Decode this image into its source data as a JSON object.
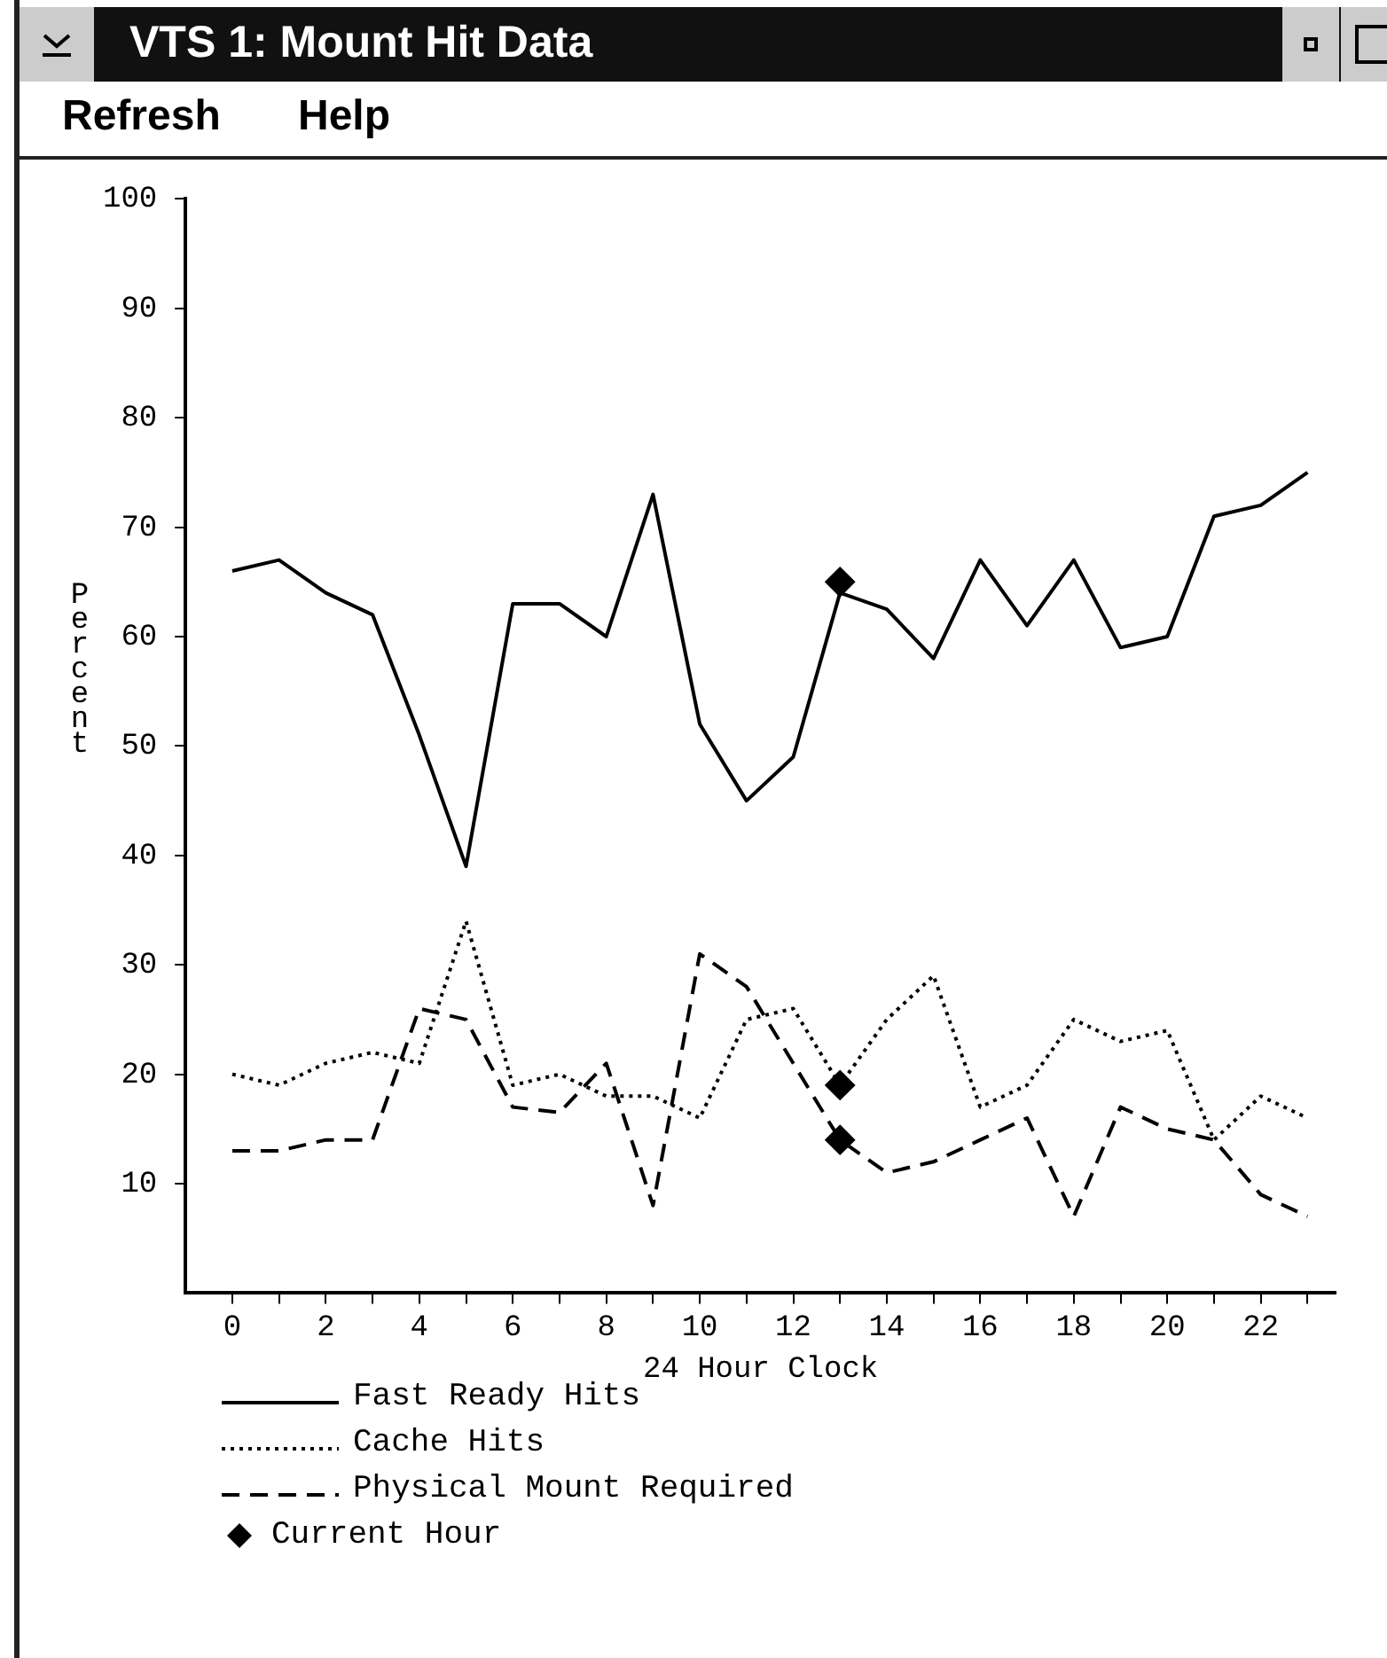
{
  "chart_data": {
    "type": "line",
    "title": "VTS 1: Mount Hit Data",
    "xlabel": "24 Hour Clock",
    "ylabel": "Percent",
    "annotations": [
      "Refresh",
      "Help"
    ],
    "x": [
      0,
      1,
      2,
      3,
      4,
      5,
      6,
      7,
      8,
      9,
      10,
      11,
      12,
      13,
      14,
      15,
      16,
      17,
      18,
      19,
      20,
      21,
      22,
      23
    ],
    "xlim": [
      -1,
      23.6
    ],
    "xticks": [
      0,
      {
        "value": 1,
        "label": null
      },
      2,
      {
        "value": 3,
        "label": null
      },
      4,
      {
        "value": 5,
        "label": null
      },
      6,
      {
        "value": 7,
        "label": null
      },
      8,
      {
        "value": 9,
        "label": null
      },
      10,
      {
        "value": 11,
        "label": null
      },
      12,
      {
        "value": 13,
        "label": null
      },
      14,
      {
        "value": 15,
        "label": null
      },
      16,
      {
        "value": 17,
        "label": null
      },
      18,
      {
        "value": 19,
        "label": null
      },
      20,
      {
        "value": 21,
        "label": null
      },
      22,
      {
        "value": 23,
        "label": null
      }
    ],
    "ylim": [
      0,
      100
    ],
    "yticks": [
      10,
      20,
      30,
      40,
      50,
      60,
      70,
      80,
      90,
      100
    ],
    "grid": false,
    "legend": "bottom left",
    "series": [
      {
        "name": "Fast Ready Hits",
        "color": "#000000",
        "line_style": "solid",
        "marker": "none",
        "values": [
          66,
          67,
          64,
          62,
          51,
          39,
          63,
          63,
          60,
          73,
          52,
          45,
          49,
          64,
          62.5,
          58,
          67,
          61,
          67,
          59,
          60,
          71,
          72,
          75
        ]
      },
      {
        "name": "Cache Hits",
        "color": "#000000",
        "line_style": "dotted",
        "marker": "none",
        "values": [
          20,
          19,
          21,
          22,
          21,
          34,
          19,
          20,
          18,
          18,
          16,
          25,
          26,
          19,
          25,
          29,
          17,
          19,
          25,
          23,
          24,
          14,
          18,
          16
        ]
      },
      {
        "name": "Physical Mount Required",
        "color": "#000000",
        "line_style": "dashed",
        "marker": "none",
        "values": [
          13,
          13,
          14,
          14,
          26,
          25,
          17,
          16.5,
          21,
          8,
          31,
          28,
          21,
          14,
          11,
          12,
          14,
          16,
          7,
          17,
          15,
          14,
          9,
          7
        ]
      },
      {
        "name": "Current Hour",
        "type": "scatter",
        "color": "#000000",
        "marker": "diamond",
        "values": [
          null,
          null,
          null,
          null,
          null,
          null,
          null,
          null,
          null,
          null,
          null,
          null,
          null,
          65,
          null,
          null,
          null,
          null,
          null,
          null,
          null,
          null,
          null,
          null
        ]
      },
      {
        "name": null,
        "type": "scatter",
        "color": "#000000",
        "marker": "diamond",
        "values": [
          null,
          null,
          null,
          null,
          null,
          null,
          null,
          null,
          null,
          null,
          null,
          null,
          null,
          19,
          null,
          null,
          null,
          null,
          null,
          null,
          null,
          null,
          null,
          null
        ]
      },
      {
        "name": null,
        "type": "scatter",
        "color": "#000000",
        "marker": "diamond",
        "values": [
          null,
          null,
          null,
          null,
          null,
          null,
          null,
          null,
          null,
          null,
          null,
          null,
          null,
          14,
          null,
          null,
          null,
          null,
          null,
          null,
          null,
          null,
          null,
          null
        ]
      }
    ]
  }
}
